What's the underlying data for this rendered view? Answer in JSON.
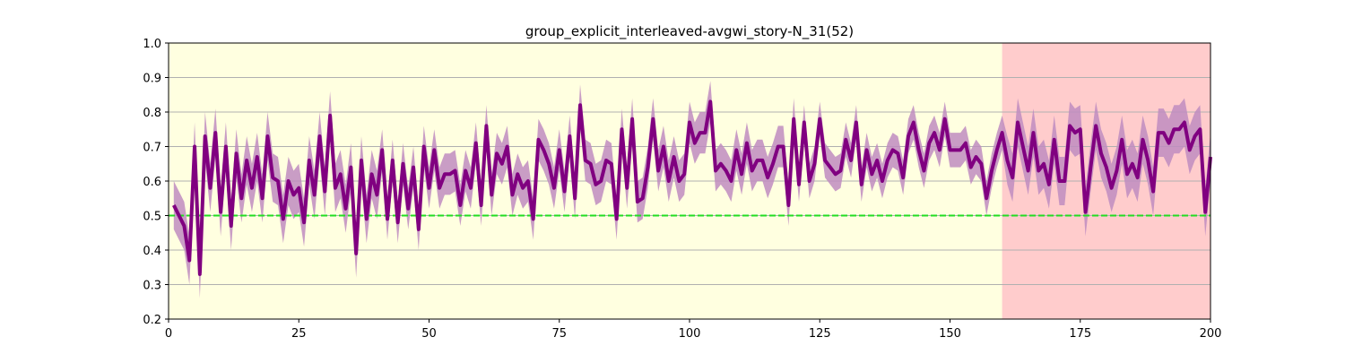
{
  "chart_data": {
    "type": "line",
    "title": "group_explicit_interleaved-avgwi_story-N_31(52)",
    "xlabel": "",
    "ylabel": "",
    "xlim": [
      0,
      200
    ],
    "ylim": [
      0.2,
      1.0
    ],
    "xticks": [
      0,
      25,
      50,
      75,
      100,
      125,
      150,
      175,
      200
    ],
    "yticks": [
      0.2,
      0.3,
      0.4,
      0.5,
      0.6,
      0.7,
      0.8,
      0.9,
      1.0
    ],
    "xtick_labels": [
      "0",
      "25",
      "50",
      "75",
      "100",
      "125",
      "150",
      "175",
      "200"
    ],
    "ytick_labels": [
      "0.2",
      "0.3",
      "0.4",
      "0.5",
      "0.6",
      "0.7",
      "0.8",
      "0.9",
      "1.0"
    ],
    "grid": "horizontal",
    "legend": "none",
    "regions": [
      {
        "x_start": 0,
        "x_end": 160,
        "color": "#ffffe0"
      },
      {
        "x_start": 160,
        "x_end": 200,
        "color": "#ffcccc"
      }
    ],
    "reference_line": {
      "y": 0.5,
      "style": "dashed",
      "color": "#22dd22"
    },
    "series": [
      {
        "color": "#800080",
        "band_color": "#c08cc0",
        "band_halfwidth": [
          0.07,
          0.07,
          0.07,
          0.07,
          0.07,
          0.07,
          0.07,
          0.07,
          0.07,
          0.07,
          0.07,
          0.07,
          0.07,
          0.07,
          0.07,
          0.07,
          0.07,
          0.07,
          0.07,
          0.07,
          0.07,
          0.07,
          0.07,
          0.07,
          0.07,
          0.07,
          0.07,
          0.07,
          0.07,
          0.07,
          0.07,
          0.07,
          0.07,
          0.07,
          0.07,
          0.07,
          0.07,
          0.07,
          0.07,
          0.07,
          0.06,
          0.06,
          0.06,
          0.06,
          0.06,
          0.06,
          0.06,
          0.06,
          0.06,
          0.06,
          0.06,
          0.06,
          0.06,
          0.06,
          0.06,
          0.06,
          0.06,
          0.06,
          0.06,
          0.06,
          0.06,
          0.06,
          0.06,
          0.06,
          0.06,
          0.06,
          0.06,
          0.06,
          0.06,
          0.06,
          0.06,
          0.06,
          0.06,
          0.06,
          0.06,
          0.06,
          0.06,
          0.06,
          0.06,
          0.06,
          0.06,
          0.06,
          0.06,
          0.06,
          0.06,
          0.06,
          0.06,
          0.06,
          0.06,
          0.06,
          0.06,
          0.06,
          0.06,
          0.06,
          0.06,
          0.06,
          0.06,
          0.06,
          0.06,
          0.06,
          0.06,
          0.06,
          0.06,
          0.06,
          0.06,
          0.06,
          0.06,
          0.06,
          0.06,
          0.06,
          0.06,
          0.06,
          0.06,
          0.06,
          0.06,
          0.06,
          0.06,
          0.06,
          0.06,
          0.06,
          0.05,
          0.05,
          0.05,
          0.05,
          0.05,
          0.05,
          0.05,
          0.05,
          0.05,
          0.05,
          0.05,
          0.05,
          0.05,
          0.05,
          0.05,
          0.05,
          0.05,
          0.05,
          0.05,
          0.05,
          0.05,
          0.05,
          0.05,
          0.05,
          0.05,
          0.05,
          0.05,
          0.05,
          0.05,
          0.05,
          0.05,
          0.05,
          0.05,
          0.05,
          0.05,
          0.05,
          0.05,
          0.05,
          0.05,
          0.05,
          0.07,
          0.07,
          0.07,
          0.07,
          0.07,
          0.07,
          0.07,
          0.07,
          0.07,
          0.07,
          0.07,
          0.07,
          0.07,
          0.07,
          0.07,
          0.07,
          0.07,
          0.07,
          0.07,
          0.07,
          0.07,
          0.07,
          0.07,
          0.07,
          0.07,
          0.07,
          0.07,
          0.07,
          0.07,
          0.07,
          0.07,
          0.07,
          0.07,
          0.07,
          0.07,
          0.07,
          0.07,
          0.07,
          0.07,
          0.07,
          0.07
        ],
        "x_start": 1,
        "values": [
          0.53,
          0.5,
          0.47,
          0.37,
          0.7,
          0.33,
          0.73,
          0.58,
          0.74,
          0.51,
          0.7,
          0.47,
          0.68,
          0.55,
          0.66,
          0.58,
          0.67,
          0.55,
          0.73,
          0.61,
          0.6,
          0.49,
          0.6,
          0.56,
          0.58,
          0.48,
          0.66,
          0.56,
          0.73,
          0.57,
          0.79,
          0.58,
          0.62,
          0.52,
          0.64,
          0.39,
          0.66,
          0.49,
          0.62,
          0.56,
          0.69,
          0.49,
          0.66,
          0.48,
          0.65,
          0.52,
          0.64,
          0.46,
          0.7,
          0.58,
          0.69,
          0.58,
          0.62,
          0.62,
          0.63,
          0.53,
          0.63,
          0.58,
          0.71,
          0.53,
          0.76,
          0.56,
          0.68,
          0.65,
          0.7,
          0.56,
          0.62,
          0.58,
          0.6,
          0.49,
          0.72,
          0.69,
          0.65,
          0.58,
          0.69,
          0.57,
          0.73,
          0.55,
          0.82,
          0.66,
          0.65,
          0.59,
          0.6,
          0.66,
          0.65,
          0.49,
          0.75,
          0.58,
          0.78,
          0.54,
          0.55,
          0.64,
          0.78,
          0.63,
          0.7,
          0.6,
          0.67,
          0.6,
          0.62,
          0.77,
          0.71,
          0.74,
          0.74,
          0.83,
          0.63,
          0.65,
          0.63,
          0.6,
          0.69,
          0.62,
          0.71,
          0.63,
          0.66,
          0.66,
          0.61,
          0.65,
          0.7,
          0.7,
          0.53,
          0.78,
          0.59,
          0.77,
          0.6,
          0.65,
          0.78,
          0.66,
          0.64,
          0.62,
          0.63,
          0.72,
          0.66,
          0.77,
          0.59,
          0.69,
          0.62,
          0.66,
          0.6,
          0.66,
          0.69,
          0.68,
          0.61,
          0.73,
          0.77,
          0.69,
          0.63,
          0.71,
          0.74,
          0.69,
          0.78,
          0.69,
          0.69,
          0.69,
          0.71,
          0.64,
          0.67,
          0.65,
          0.55,
          0.63,
          0.69,
          0.74,
          0.66,
          0.61,
          0.77,
          0.7,
          0.63,
          0.74,
          0.63,
          0.65,
          0.59,
          0.72,
          0.6,
          0.6,
          0.76,
          0.74,
          0.75,
          0.51,
          0.64,
          0.76,
          0.68,
          0.64,
          0.58,
          0.63,
          0.72,
          0.62,
          0.65,
          0.61,
          0.72,
          0.66,
          0.57,
          0.74,
          0.74,
          0.71,
          0.75,
          0.75,
          0.77,
          0.69,
          0.73,
          0.75,
          0.51,
          0.67
        ]
      }
    ]
  }
}
